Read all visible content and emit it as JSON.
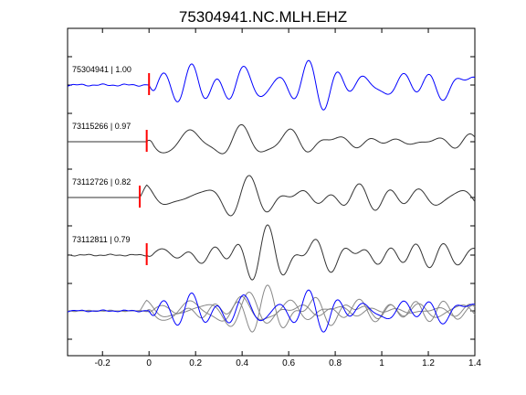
{
  "chart_data": {
    "type": "line",
    "title": "75304941.NC.MLH.EHZ",
    "xlabel": "",
    "ylabel": "",
    "xlim": [
      -0.35,
      1.4
    ],
    "x_ticks": [
      -0.2,
      0,
      0.2,
      0.4,
      0.6,
      0.8,
      1,
      1.2,
      1.4
    ],
    "x_tick_labels": [
      "-0.2",
      "0",
      "0.2",
      "0.4",
      "0.6",
      "0.8",
      "1",
      "1.2",
      "1.4"
    ],
    "grid": false,
    "legend": "none",
    "colors": {
      "primary": "#0000ff",
      "secondary": "#333333",
      "overlay_gray": "#888888",
      "pick": "#ff0000",
      "axis": "#000000"
    },
    "series": [
      {
        "name": "75304941 | 1.00",
        "event_id": "75304941",
        "correlation": 1.0,
        "pick_time": 0.0,
        "pre_noise": 0.05,
        "color": "#0000ff"
      },
      {
        "name": "73115266 | 0.97",
        "event_id": "73115266",
        "correlation": 0.97,
        "pick_time": -0.01,
        "pre_noise": 0.0,
        "color": "#333333"
      },
      {
        "name": "73112726 | 0.82",
        "event_id": "73112726",
        "correlation": 0.82,
        "pick_time": -0.04,
        "pre_noise": 0.0,
        "color": "#333333"
      },
      {
        "name": "73112811 | 0.79",
        "event_id": "73112811",
        "correlation": 0.79,
        "pick_time": -0.01,
        "pre_noise": 0.04,
        "color": "#333333"
      }
    ],
    "overlay": {
      "description": "stack",
      "reference_color": "#0000ff",
      "others_color": "#888888"
    }
  }
}
